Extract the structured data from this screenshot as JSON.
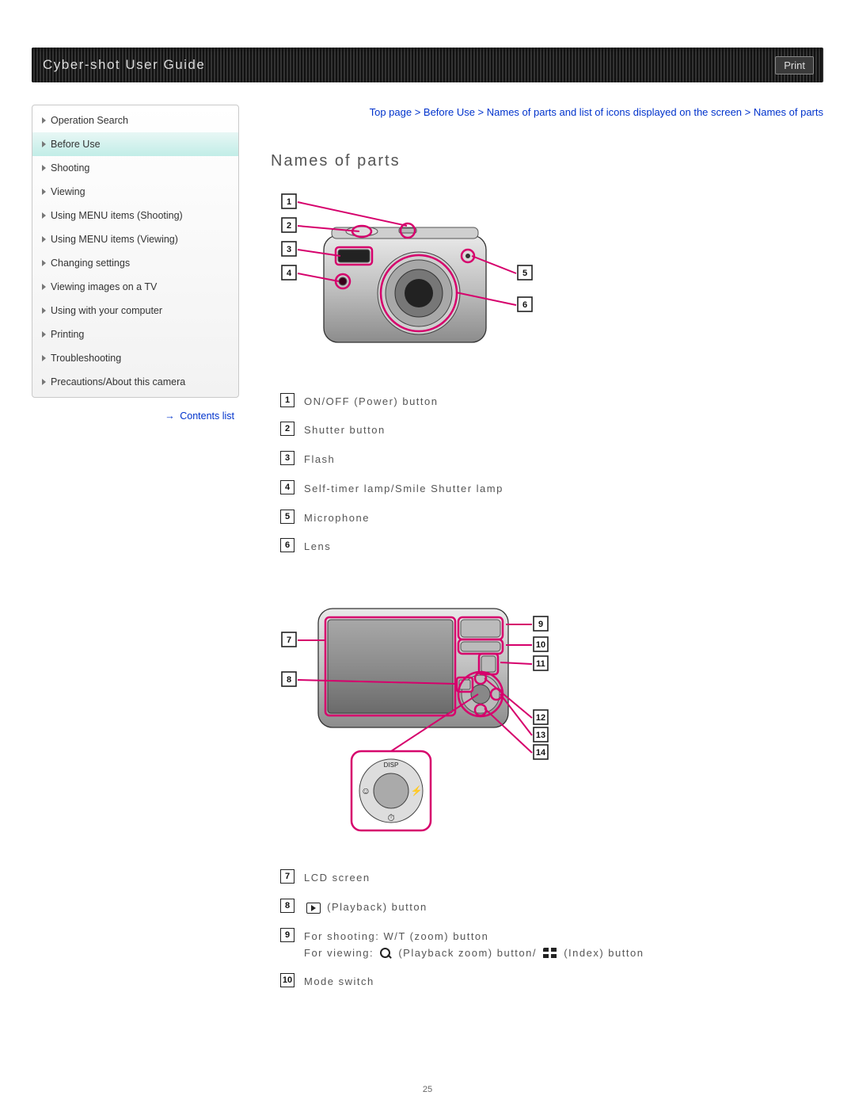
{
  "header": {
    "title": "Cyber-shot User Guide",
    "print_label": "Print"
  },
  "sidebar": {
    "items": [
      {
        "label": "Operation Search",
        "active": false
      },
      {
        "label": "Before Use",
        "active": true
      },
      {
        "label": "Shooting",
        "active": false
      },
      {
        "label": "Viewing",
        "active": false
      },
      {
        "label": "Using MENU items (Shooting)",
        "active": false
      },
      {
        "label": "Using MENU items (Viewing)",
        "active": false
      },
      {
        "label": "Changing settings",
        "active": false
      },
      {
        "label": "Viewing images on a TV",
        "active": false
      },
      {
        "label": "Using with your computer",
        "active": false
      },
      {
        "label": "Printing",
        "active": false
      },
      {
        "label": "Troubleshooting",
        "active": false
      },
      {
        "label": "Precautions/About this camera",
        "active": false
      }
    ],
    "contents_link": "Contents list"
  },
  "breadcrumb": "Top page > Before Use > Names of parts and list of icons displayed on the screen > Names of parts",
  "page_title": "Names of parts",
  "front_parts": [
    {
      "num": "1",
      "label": "ON/OFF (Power) button"
    },
    {
      "num": "2",
      "label": "Shutter button"
    },
    {
      "num": "3",
      "label": "Flash"
    },
    {
      "num": "4",
      "label": "Self-timer lamp/Smile Shutter lamp"
    },
    {
      "num": "5",
      "label": "Microphone"
    },
    {
      "num": "6",
      "label": "Lens"
    }
  ],
  "back_parts": [
    {
      "num": "7",
      "label": "LCD screen"
    },
    {
      "num": "8",
      "label_pre": "",
      "icon": "play",
      "label_post": "(Playback) button"
    },
    {
      "num": "9",
      "line1": "For shooting: W/T (zoom) button",
      "line2_pre": "For viewing: ",
      "icon2a": "mag",
      "mid2a": "(Playback zoom) button/ ",
      "icon2b": "index",
      "mid2b": "(Index) button"
    },
    {
      "num": "10",
      "label": "Mode switch"
    }
  ],
  "colors": {
    "callout": "#d6006c",
    "link": "#0033cc",
    "sidebar_active_top": "#e8f7f5",
    "sidebar_active_bottom": "#c1ede7"
  },
  "diagram_front": {
    "left_labels": [
      "1",
      "2",
      "3",
      "4"
    ],
    "right_labels": [
      "5",
      "6"
    ]
  },
  "diagram_back": {
    "left_labels": [
      "7",
      "8"
    ],
    "right_labels": [
      "9",
      "10",
      "11",
      "12",
      "13",
      "14"
    ],
    "detail_label": "DISP"
  },
  "page_number": "25"
}
